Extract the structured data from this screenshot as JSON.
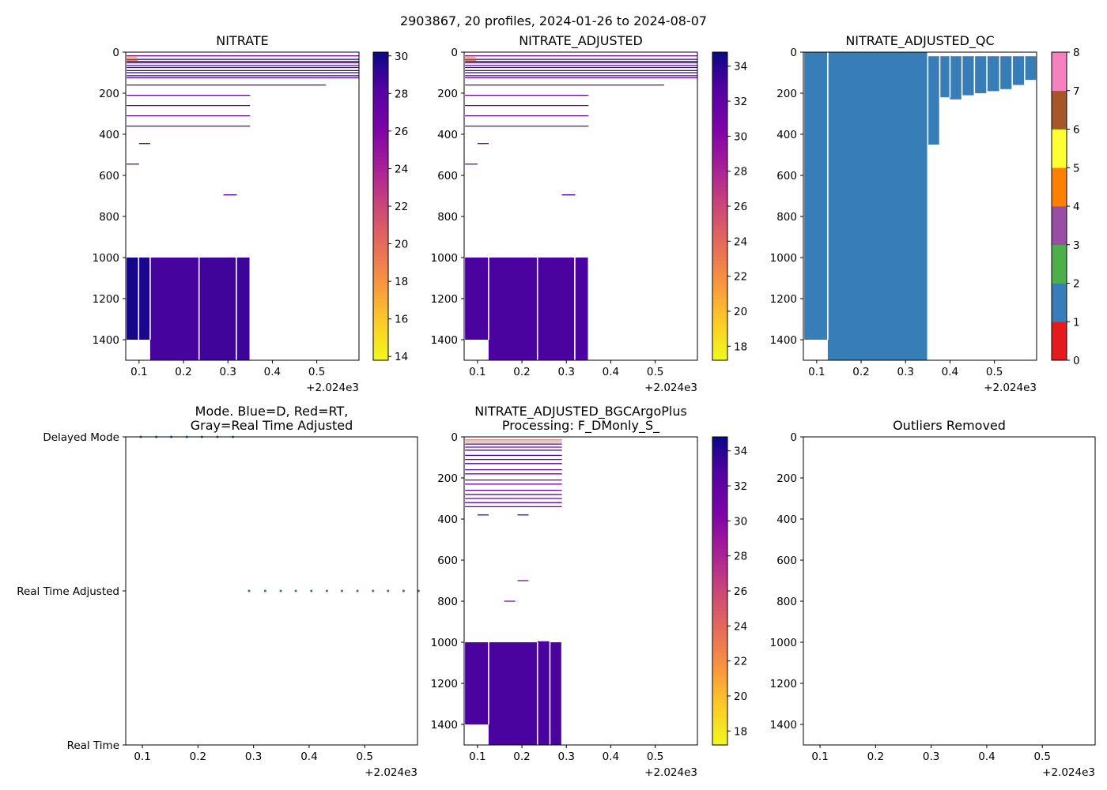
{
  "figure": {
    "suptitle": "2903867, 20 profiles, 2024-01-26 to 2024-08-07",
    "offset_label": "+2.024e3"
  },
  "chart_data": [
    {
      "id": "nitrate",
      "type": "heatmap",
      "title": "NITRATE",
      "x_range": [
        0.07,
        0.595
      ],
      "y_range": [
        0,
        1500
      ],
      "y_inverted": true,
      "x_ticks": [
        0.1,
        0.2,
        0.3,
        0.4,
        0.5
      ],
      "x_tick_labels": [
        "0.1",
        "0.2",
        "0.3",
        "0.4",
        "0.5"
      ],
      "y_ticks": [
        0,
        200,
        400,
        600,
        800,
        1000,
        1200,
        1400
      ],
      "y_tick_labels": [
        "0",
        "200",
        "400",
        "600",
        "800",
        "1000",
        "1200",
        "1400"
      ],
      "colorbar": {
        "cmap": "plasma_r",
        "range": [
          13.8,
          30.2
        ],
        "ticks": [
          14,
          16,
          18,
          20,
          22,
          24,
          26,
          28,
          30
        ],
        "tick_labels": [
          "14",
          "16",
          "18",
          "20",
          "22",
          "24",
          "26",
          "28",
          "30"
        ]
      },
      "lines": [
        {
          "x0": 0.072,
          "x1": 0.595,
          "y": 18,
          "v": 26
        },
        {
          "x0": 0.072,
          "x1": 0.095,
          "y": 25,
          "v": 17
        },
        {
          "x0": 0.072,
          "x1": 0.595,
          "y": 35,
          "v": 30
        },
        {
          "x0": 0.072,
          "x1": 0.097,
          "y": 40,
          "v": 18.5
        },
        {
          "x0": 0.072,
          "x1": 0.595,
          "y": 45,
          "v": 27
        },
        {
          "x0": 0.072,
          "x1": 0.595,
          "y": 52,
          "v": 29
        },
        {
          "x0": 0.072,
          "x1": 0.595,
          "y": 65,
          "v": 28
        },
        {
          "x0": 0.072,
          "x1": 0.595,
          "y": 75,
          "v": 29.5
        },
        {
          "x0": 0.072,
          "x1": 0.595,
          "y": 90,
          "v": 30
        },
        {
          "x0": 0.072,
          "x1": 0.595,
          "y": 100,
          "v": 29
        },
        {
          "x0": 0.072,
          "x1": 0.595,
          "y": 115,
          "v": 29.5
        },
        {
          "x0": 0.072,
          "x1": 0.595,
          "y": 125,
          "v": 28.5
        },
        {
          "x0": 0.072,
          "x1": 0.52,
          "y": 160,
          "v": 28
        },
        {
          "x0": 0.072,
          "x1": 0.35,
          "y": 210,
          "v": 28
        },
        {
          "x0": 0.072,
          "x1": 0.35,
          "y": 260,
          "v": 28
        },
        {
          "x0": 0.072,
          "x1": 0.35,
          "y": 310,
          "v": 28
        },
        {
          "x0": 0.072,
          "x1": 0.35,
          "y": 360,
          "v": 28
        },
        {
          "x0": 0.1,
          "x1": 0.125,
          "y": 445,
          "v": 29
        },
        {
          "x0": 0.072,
          "x1": 0.1,
          "y": 545,
          "v": 28
        },
        {
          "x0": 0.29,
          "x1": 0.32,
          "y": 695,
          "v": 28
        }
      ],
      "blocks": [
        {
          "x0": 0.072,
          "x1": 0.099,
          "y0": 1000,
          "y1": 1400,
          "v": 30
        },
        {
          "x0": 0.099,
          "x1": 0.125,
          "y0": 1000,
          "y1": 1400,
          "v": 29.8
        },
        {
          "x0": 0.125,
          "x1": 0.235,
          "y0": 1000,
          "y1": 1500,
          "v": 28.6
        },
        {
          "x0": 0.235,
          "x1": 0.319,
          "y0": 1000,
          "y1": 1500,
          "v": 28.8
        },
        {
          "x0": 0.319,
          "x1": 0.35,
          "y0": 1000,
          "y1": 1500,
          "v": 28.9
        }
      ]
    },
    {
      "id": "nitrate_adjusted",
      "type": "heatmap",
      "title": "NITRATE_ADJUSTED",
      "x_range": [
        0.07,
        0.595
      ],
      "y_range": [
        0,
        1500
      ],
      "y_inverted": true,
      "x_ticks": [
        0.1,
        0.2,
        0.3,
        0.4,
        0.5
      ],
      "x_tick_labels": [
        "0.1",
        "0.2",
        "0.3",
        "0.4",
        "0.5"
      ],
      "y_ticks": [
        0,
        200,
        400,
        600,
        800,
        1000,
        1200,
        1400
      ],
      "y_tick_labels": [
        "0",
        "200",
        "400",
        "600",
        "800",
        "1000",
        "1200",
        "1400"
      ],
      "colorbar": {
        "cmap": "plasma_r",
        "range": [
          17.2,
          34.8
        ],
        "ticks": [
          18,
          20,
          22,
          24,
          26,
          28,
          30,
          32,
          34
        ],
        "tick_labels": [
          "18",
          "20",
          "22",
          "24",
          "26",
          "28",
          "30",
          "32",
          "34"
        ]
      },
      "lines": [
        {
          "x0": 0.072,
          "x1": 0.595,
          "y": 18,
          "v": 30
        },
        {
          "x0": 0.072,
          "x1": 0.095,
          "y": 25,
          "v": 21
        },
        {
          "x0": 0.072,
          "x1": 0.595,
          "y": 35,
          "v": 34
        },
        {
          "x0": 0.072,
          "x1": 0.097,
          "y": 40,
          "v": 22
        },
        {
          "x0": 0.072,
          "x1": 0.595,
          "y": 45,
          "v": 31
        },
        {
          "x0": 0.072,
          "x1": 0.595,
          "y": 52,
          "v": 33
        },
        {
          "x0": 0.072,
          "x1": 0.595,
          "y": 65,
          "v": 32
        },
        {
          "x0": 0.072,
          "x1": 0.595,
          "y": 75,
          "v": 33.5
        },
        {
          "x0": 0.072,
          "x1": 0.595,
          "y": 90,
          "v": 34
        },
        {
          "x0": 0.072,
          "x1": 0.595,
          "y": 100,
          "v": 33
        },
        {
          "x0": 0.072,
          "x1": 0.595,
          "y": 115,
          "v": 33.5
        },
        {
          "x0": 0.072,
          "x1": 0.595,
          "y": 125,
          "v": 32.5
        },
        {
          "x0": 0.072,
          "x1": 0.52,
          "y": 160,
          "v": 32
        },
        {
          "x0": 0.072,
          "x1": 0.35,
          "y": 210,
          "v": 32
        },
        {
          "x0": 0.072,
          "x1": 0.35,
          "y": 260,
          "v": 32
        },
        {
          "x0": 0.072,
          "x1": 0.35,
          "y": 310,
          "v": 32
        },
        {
          "x0": 0.072,
          "x1": 0.35,
          "y": 360,
          "v": 32
        },
        {
          "x0": 0.1,
          "x1": 0.125,
          "y": 445,
          "v": 33
        },
        {
          "x0": 0.072,
          "x1": 0.1,
          "y": 545,
          "v": 32
        },
        {
          "x0": 0.29,
          "x1": 0.32,
          "y": 695,
          "v": 32
        }
      ],
      "blocks": [
        {
          "x0": 0.072,
          "x1": 0.125,
          "y0": 1000,
          "y1": 1400,
          "v": 33
        },
        {
          "x0": 0.125,
          "x1": 0.235,
          "y0": 1000,
          "y1": 1500,
          "v": 33
        },
        {
          "x0": 0.235,
          "x1": 0.319,
          "y0": 1000,
          "y1": 1500,
          "v": 33
        },
        {
          "x0": 0.319,
          "x1": 0.35,
          "y0": 1000,
          "y1": 1500,
          "v": 33
        }
      ]
    },
    {
      "id": "nitrate_adjusted_qc",
      "type": "heatmap",
      "title": "NITRATE_ADJUSTED_QC",
      "x_range": [
        0.07,
        0.595
      ],
      "y_range": [
        0,
        1500
      ],
      "y_inverted": true,
      "x_ticks": [
        0.1,
        0.2,
        0.3,
        0.4,
        0.5
      ],
      "x_tick_labels": [
        "0.1",
        "0.2",
        "0.3",
        "0.4",
        "0.5"
      ],
      "y_ticks": [
        0,
        200,
        400,
        600,
        800,
        1000,
        1200,
        1400
      ],
      "y_tick_labels": [
        "0",
        "200",
        "400",
        "600",
        "800",
        "1000",
        "1200",
        "1400"
      ],
      "qc_colors": [
        "#e41a1c",
        "#377eb8",
        "#4daf4a",
        "#984ea3",
        "#ff7f00",
        "#ffff33",
        "#a65628",
        "#f781bf",
        "#999999"
      ],
      "colorbar": {
        "cmap": "qc",
        "range": [
          0,
          8
        ],
        "ticks": [
          0,
          1,
          2,
          3,
          4,
          5,
          6,
          7,
          8
        ],
        "tick_labels": [
          "0",
          "1",
          "2",
          "3",
          "4",
          "5",
          "6",
          "7",
          "8"
        ]
      },
      "blocks": [
        {
          "x0": 0.072,
          "x1": 0.125,
          "y0": 0,
          "y1": 1400,
          "v": 1
        },
        {
          "x0": 0.072,
          "x1": 0.153,
          "y0": 1400,
          "y1": 1500,
          "v": -1
        },
        {
          "x0": 0.125,
          "x1": 0.35,
          "y0": 0,
          "y1": 1500,
          "v": 1
        },
        {
          "x0": 0.35,
          "x1": 0.377,
          "y0": 20,
          "y1": 450,
          "v": 1
        },
        {
          "x0": 0.377,
          "x1": 0.4,
          "y0": 20,
          "y1": 220,
          "v": 1
        },
        {
          "x0": 0.4,
          "x1": 0.427,
          "y0": 20,
          "y1": 230,
          "v": 1
        },
        {
          "x0": 0.427,
          "x1": 0.455,
          "y0": 20,
          "y1": 210,
          "v": 1
        },
        {
          "x0": 0.455,
          "x1": 0.483,
          "y0": 20,
          "y1": 200,
          "v": 1
        },
        {
          "x0": 0.483,
          "x1": 0.512,
          "y0": 20,
          "y1": 190,
          "v": 1
        },
        {
          "x0": 0.512,
          "x1": 0.54,
          "y0": 20,
          "y1": 180,
          "v": 1
        },
        {
          "x0": 0.54,
          "x1": 0.568,
          "y0": 20,
          "y1": 160,
          "v": 1
        },
        {
          "x0": 0.568,
          "x1": 0.595,
          "y0": 20,
          "y1": 135,
          "v": 1
        }
      ]
    },
    {
      "id": "mode",
      "type": "scatter",
      "title": "Mode. Blue=D, Red=RT,",
      "title_line2": "Gray=Real Time Adjusted",
      "x_range": [
        0.07,
        0.595
      ],
      "x_ticks": [
        0.1,
        0.2,
        0.3,
        0.4,
        0.5
      ],
      "x_tick_labels": [
        "0.1",
        "0.2",
        "0.3",
        "0.4",
        "0.5"
      ],
      "y_categories": [
        "Real Time",
        "Real Time Adjusted",
        "Delayed Mode"
      ],
      "series": [
        {
          "name": "Delayed Mode",
          "x": [
            0.097,
            0.125,
            0.152,
            0.18,
            0.207,
            0.235,
            0.263
          ],
          "y": [
            2,
            2,
            2,
            2,
            2,
            2,
            2
          ]
        },
        {
          "name": "Real Time Adjusted",
          "x": [
            0.292,
            0.321,
            0.349,
            0.376,
            0.404,
            0.432,
            0.459,
            0.487,
            0.515,
            0.542,
            0.57,
            0.597
          ],
          "y": [
            1,
            1,
            1,
            1,
            1,
            1,
            1,
            1,
            1,
            1,
            1,
            1
          ]
        }
      ]
    },
    {
      "id": "bgcargoplus",
      "type": "heatmap",
      "title": "NITRATE_ADJUSTED_BGCArgoPlus",
      "title_line2": "Processing: F_DMonly_S_",
      "x_range": [
        0.07,
        0.595
      ],
      "y_range": [
        0,
        1500
      ],
      "y_inverted": true,
      "x_ticks": [
        0.1,
        0.2,
        0.3,
        0.4,
        0.5
      ],
      "x_tick_labels": [
        "0.1",
        "0.2",
        "0.3",
        "0.4",
        "0.5"
      ],
      "y_ticks": [
        0,
        200,
        400,
        600,
        800,
        1000,
        1200,
        1400
      ],
      "y_tick_labels": [
        "0",
        "200",
        "400",
        "600",
        "800",
        "1000",
        "1200",
        "1400"
      ],
      "colorbar": {
        "cmap": "plasma_r",
        "range": [
          17.2,
          34.8
        ],
        "ticks": [
          18,
          20,
          22,
          24,
          26,
          28,
          30,
          32,
          34
        ],
        "tick_labels": [
          "18",
          "20",
          "22",
          "24",
          "26",
          "28",
          "30",
          "32",
          "34"
        ]
      },
      "lines": [
        {
          "x0": 0.072,
          "x1": 0.29,
          "y": 15,
          "v": 24
        },
        {
          "x0": 0.072,
          "x1": 0.29,
          "y": 25,
          "v": 22
        },
        {
          "x0": 0.072,
          "x1": 0.29,
          "y": 35,
          "v": 33
        },
        {
          "x0": 0.072,
          "x1": 0.29,
          "y": 50,
          "v": 31
        },
        {
          "x0": 0.072,
          "x1": 0.29,
          "y": 65,
          "v": 34
        },
        {
          "x0": 0.072,
          "x1": 0.29,
          "y": 90,
          "v": 33
        },
        {
          "x0": 0.072,
          "x1": 0.29,
          "y": 110,
          "v": 32
        },
        {
          "x0": 0.072,
          "x1": 0.29,
          "y": 130,
          "v": 33
        },
        {
          "x0": 0.072,
          "x1": 0.29,
          "y": 160,
          "v": 32
        },
        {
          "x0": 0.072,
          "x1": 0.29,
          "y": 180,
          "v": 31
        },
        {
          "x0": 0.072,
          "x1": 0.29,
          "y": 210,
          "v": 32
        },
        {
          "x0": 0.072,
          "x1": 0.29,
          "y": 230,
          "v": 31
        },
        {
          "x0": 0.072,
          "x1": 0.29,
          "y": 260,
          "v": 32
        },
        {
          "x0": 0.072,
          "x1": 0.29,
          "y": 280,
          "v": 31
        },
        {
          "x0": 0.072,
          "x1": 0.29,
          "y": 300,
          "v": 32
        },
        {
          "x0": 0.072,
          "x1": 0.29,
          "y": 320,
          "v": 31
        },
        {
          "x0": 0.072,
          "x1": 0.29,
          "y": 340,
          "v": 32
        },
        {
          "x0": 0.1,
          "x1": 0.125,
          "y": 380,
          "v": 33
        },
        {
          "x0": 0.19,
          "x1": 0.215,
          "y": 380,
          "v": 33
        },
        {
          "x0": 0.19,
          "x1": 0.215,
          "y": 700,
          "v": 30
        },
        {
          "x0": 0.16,
          "x1": 0.185,
          "y": 800,
          "v": 30
        }
      ],
      "blocks": [
        {
          "x0": 0.072,
          "x1": 0.125,
          "y0": 1000,
          "y1": 1400,
          "v": 33
        },
        {
          "x0": 0.125,
          "x1": 0.235,
          "y0": 1000,
          "y1": 1500,
          "v": 33
        },
        {
          "x0": 0.235,
          "x1": 0.263,
          "y0": 995,
          "y1": 1500,
          "v": 33
        },
        {
          "x0": 0.263,
          "x1": 0.29,
          "y0": 1000,
          "y1": 1500,
          "v": 33
        }
      ]
    },
    {
      "id": "outliers",
      "type": "scatter",
      "title": "Outliers Removed",
      "x_range": [
        0.07,
        0.595
      ],
      "y_range": [
        0,
        1500
      ],
      "y_inverted": true,
      "x_ticks": [
        0.1,
        0.2,
        0.3,
        0.4,
        0.5
      ],
      "x_tick_labels": [
        "0.1",
        "0.2",
        "0.3",
        "0.4",
        "0.5"
      ],
      "y_ticks": [
        0,
        200,
        400,
        600,
        800,
        1000,
        1200,
        1400
      ],
      "y_tick_labels": [
        "0",
        "200",
        "400",
        "600",
        "800",
        "1000",
        "1200",
        "1400"
      ],
      "series": []
    }
  ]
}
